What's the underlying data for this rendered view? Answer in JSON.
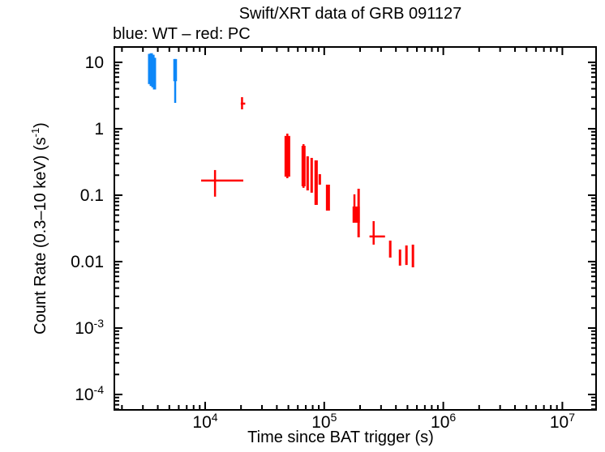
{
  "page": {
    "kind": "Swift XRT light curve plot"
  },
  "chart_data": {
    "type": "scatter",
    "title": "Swift/XRT data of GRB 091127",
    "subtitle": "blue: WT – red: PC",
    "xlabel": "Time since BAT trigger (s)",
    "ylabel": "Count Rate (0.3–10 keV) (s^{-1})",
    "xscale": "log",
    "yscale": "log",
    "grid": false,
    "xlim": [
      1700,
      19500000
    ],
    "ylim": [
      5.7e-05,
      17.5
    ],
    "x_major_ticks": [
      10000,
      100000,
      1000000,
      10000000
    ],
    "x_tick_labels": [
      "10^{4}",
      "10^{5}",
      "10^{6}",
      "10^{7}"
    ],
    "y_major_ticks": [
      10,
      1,
      0.1,
      0.01,
      0.001,
      0.0001
    ],
    "y_tick_labels": [
      "10",
      "1",
      "0.1",
      "0.01",
      "10^{-3}",
      "10^{-4}"
    ],
    "legend": [
      {
        "label": "WT",
        "color_name": "blue"
      },
      {
        "label": "PC",
        "color_name": "red"
      }
    ],
    "series": [
      {
        "name": "WT",
        "color": "#0d87f8",
        "marks": [
          {
            "kind": "box",
            "t1": 3310,
            "t2": 3530,
            "r1": 4.7,
            "r2": 13.4
          },
          {
            "kind": "box",
            "t1": 3420,
            "t2": 3640,
            "r1": 4.4,
            "r2": 13.7
          },
          {
            "kind": "box",
            "t1": 3530,
            "t2": 3760,
            "r1": 4.2,
            "r2": 13.0
          },
          {
            "kind": "box",
            "t1": 3640,
            "t2": 3870,
            "r1": 3.9,
            "r2": 11.7
          },
          {
            "kind": "box",
            "t1": 5400,
            "t2": 5800,
            "r1": 5.2,
            "r2": 11.2
          },
          {
            "kind": "v",
            "t": 5600,
            "r1": 2.45,
            "r2": 11.2
          }
        ]
      },
      {
        "name": "PC",
        "color": "#ff0000",
        "marks": [
          {
            "kind": "v",
            "t": 20400,
            "r1": 1.96,
            "r2": 2.99
          },
          {
            "kind": "h",
            "t1": 19900,
            "t2": 21700,
            "r": 2.39
          },
          {
            "kind": "h",
            "t1": 9250,
            "t2": 20900,
            "r": 0.166
          },
          {
            "kind": "v",
            "t": 12100,
            "r1": 0.095,
            "r2": 0.239
          },
          {
            "kind": "box",
            "t1": 46400,
            "t2": 51800,
            "r1": 0.19,
            "r2": 0.78
          },
          {
            "kind": "v",
            "t": 49000,
            "r1": 0.18,
            "r2": 0.845
          },
          {
            "kind": "box",
            "t1": 64500,
            "t2": 69700,
            "r1": 0.136,
            "r2": 0.554
          },
          {
            "kind": "v",
            "t": 67000,
            "r1": 0.129,
            "r2": 0.586
          },
          {
            "kind": "box",
            "t1": 70800,
            "t2": 74300,
            "r1": 0.118,
            "r2": 0.385
          },
          {
            "kind": "box",
            "t1": 76600,
            "t2": 80300,
            "r1": 0.109,
            "r2": 0.364
          },
          {
            "kind": "box",
            "t1": 82800,
            "t2": 88300,
            "r1": 0.0714,
            "r2": 0.334
          },
          {
            "kind": "box",
            "t1": 89600,
            "t2": 94000,
            "r1": 0.144,
            "r2": 0.207
          },
          {
            "kind": "box",
            "t1": 103300,
            "t2": 111700,
            "r1": 0.0586,
            "r2": 0.144
          },
          {
            "kind": "box",
            "t1": 175800,
            "t2": 181500,
            "r1": 0.0539,
            "r2": 0.103
          },
          {
            "kind": "box",
            "t1": 173000,
            "t2": 199000,
            "r1": 0.0385,
            "r2": 0.0675
          },
          {
            "kind": "box",
            "t1": 190000,
            "t2": 199000,
            "r1": 0.0232,
            "r2": 0.125
          },
          {
            "kind": "v",
            "t": 260000,
            "r1": 0.018,
            "r2": 0.0407
          },
          {
            "kind": "h",
            "t1": 240000,
            "t2": 324000,
            "r": 0.0239
          },
          {
            "kind": "box",
            "t1": 350000,
            "t2": 367000,
            "r1": 0.0115,
            "r2": 0.0207
          },
          {
            "kind": "box",
            "t1": 423000,
            "t2": 443000,
            "r1": 0.0087,
            "r2": 0.0152
          },
          {
            "kind": "box",
            "t1": 479000,
            "t2": 502000,
            "r1": 0.0089,
            "r2": 0.0175
          },
          {
            "kind": "box",
            "t1": 543000,
            "t2": 569000,
            "r1": 0.0082,
            "r2": 0.018
          }
        ]
      }
    ]
  }
}
